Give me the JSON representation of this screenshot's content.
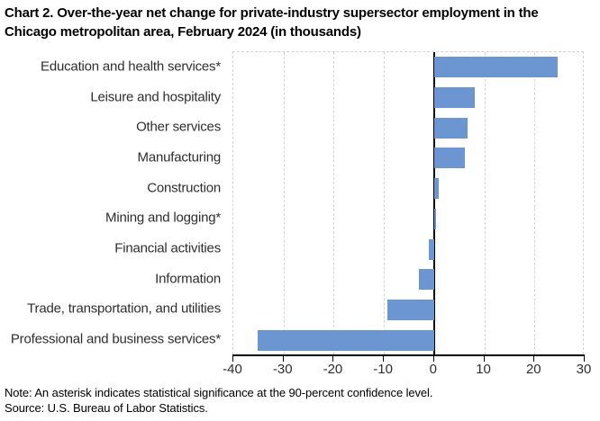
{
  "header": {
    "title_line1": "Chart 2. Over-the-year net change for private-industry supersector employment in",
    "title_line2": "the Chicago metropolitan area, February 2024 (in thousands)"
  },
  "note": "Note: An asterisk indicates statistical significance at the 90-percent confidence level.",
  "source": "Source: U.S. Bureau of Labor Statistics.",
  "chart_data": {
    "type": "bar",
    "orientation": "horizontal",
    "title": "Chart 2. Over-the-year net change for private-industry supersector employment in the Chicago metropolitan area, February 2024 (in thousands)",
    "categories": [
      "Education and health services*",
      "Leisure and hospitality",
      "Other services",
      "Manufacturing",
      "Construction",
      "Mining and logging*",
      "Financial activities",
      "Information",
      "Trade, transportation, and utilities",
      "Professional and business services*"
    ],
    "values": [
      24.6,
      8.1,
      6.6,
      6.2,
      0.9,
      0.3,
      -1.0,
      -3.1,
      -9.3,
      -35.1
    ],
    "xlabel": "",
    "ylabel": "",
    "xlim": [
      -40,
      30
    ],
    "x_ticks": [
      -40,
      -30,
      -20,
      -10,
      0,
      10,
      20,
      30
    ],
    "grid": "vertical-dashed",
    "legend": "none",
    "colors": {
      "bar": "#6b96d2",
      "gridline": "#d4d4d4",
      "axis": "#000000",
      "label_text": "#2e2e2e",
      "title_text": "#000000"
    }
  }
}
